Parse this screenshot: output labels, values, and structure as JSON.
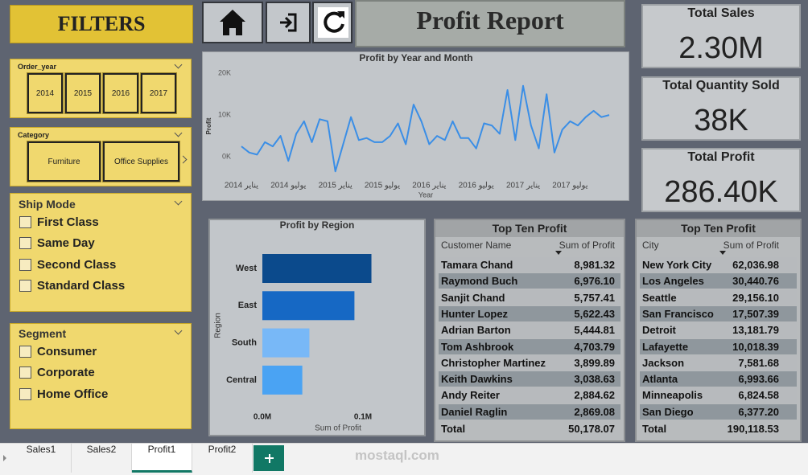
{
  "filters_title": "FILTERS",
  "order_year": {
    "title": "Order_year",
    "options": [
      "2014",
      "2015",
      "2016",
      "2017"
    ]
  },
  "category": {
    "title": "Category",
    "options": [
      "Furniture",
      "Office Supplies"
    ]
  },
  "ship_mode": {
    "title": "Ship Mode",
    "options": [
      "First Class",
      "Same Day",
      "Second Class",
      "Standard Class"
    ]
  },
  "segment": {
    "title": "Segment",
    "options": [
      "Consumer",
      "Corporate",
      "Home Office"
    ]
  },
  "report_title": "Profit Report",
  "cards": [
    {
      "label": "Total Sales",
      "value": "2.30M"
    },
    {
      "label": "Total Quantity Sold",
      "value": "38K"
    },
    {
      "label": "Total Profit",
      "value": "286.40K"
    }
  ],
  "chart_data": [
    {
      "type": "line",
      "title": "Profit by Year and Month",
      "x_label": "Year",
      "y_label": "Profit",
      "color": "#3a8ee6",
      "grid": false,
      "categories": [
        "يناير 2014",
        null,
        null,
        null,
        null,
        null,
        "يوليو 2014",
        null,
        null,
        null,
        null,
        null,
        "يناير 2015",
        null,
        null,
        null,
        null,
        null,
        "يوليو 2015",
        null,
        null,
        null,
        null,
        null,
        "يناير 2016",
        null,
        null,
        null,
        null,
        null,
        "يوليو 2016",
        null,
        null,
        null,
        null,
        null,
        "يناير 2017",
        null,
        null,
        null,
        null,
        null,
        "يوليو 2017",
        null,
        null,
        null,
        null,
        null
      ],
      "values": [
        2500,
        1000,
        500,
        3500,
        2500,
        5000,
        -1000,
        5500,
        8500,
        3500,
        9000,
        8500,
        -3500,
        3000,
        9500,
        4000,
        4500,
        3500,
        3500,
        5000,
        8000,
        3000,
        12500,
        8500,
        3000,
        5000,
        4000,
        8500,
        4500,
        4500,
        2000,
        8000,
        7500,
        5500,
        16000,
        4000,
        17000,
        7500,
        2000,
        15000,
        1000,
        6500,
        8500,
        7500,
        9500,
        11000,
        9500,
        10000
      ],
      "ylim": [
        -5000,
        21000
      ],
      "yticks": [
        {
          "value": 0,
          "label": "0K"
        },
        {
          "value": 10000,
          "label": "10K"
        },
        {
          "value": 20000,
          "label": "20K"
        }
      ]
    },
    {
      "type": "bar",
      "orientation": "horizontal",
      "title": "Profit by Region",
      "x_label": "Sum of Profit",
      "y_label": "Region",
      "grid": false,
      "categories": [
        "West",
        "East",
        "South",
        "Central"
      ],
      "values": [
        108418.45,
        91522.78,
        46749.43,
        39706.36
      ],
      "colors": [
        "#0b4a8c",
        "#1668c4",
        "#78b8f7",
        "#4aa3f3"
      ],
      "xlim": [
        0,
        140000
      ],
      "xticks": [
        {
          "value": 0,
          "label": "0.0M"
        },
        {
          "value": 100000,
          "label": "0.1M"
        }
      ]
    }
  ],
  "tables": [
    {
      "title": "Top Ten Profit",
      "columns": [
        "Customer Name",
        "Sum of Profit"
      ],
      "rows": [
        [
          "Tamara Chand",
          "8,981.32"
        ],
        [
          "Raymond Buch",
          "6,976.10"
        ],
        [
          "Sanjit Chand",
          "5,757.41"
        ],
        [
          "Hunter Lopez",
          "5,622.43"
        ],
        [
          "Adrian Barton",
          "5,444.81"
        ],
        [
          "Tom Ashbrook",
          "4,703.79"
        ],
        [
          "Christopher Martinez",
          "3,899.89"
        ],
        [
          "Keith Dawkins",
          "3,038.63"
        ],
        [
          "Andy Reiter",
          "2,884.62"
        ],
        [
          "Daniel Raglin",
          "2,869.08"
        ]
      ],
      "total": [
        "Total",
        "50,178.07"
      ]
    },
    {
      "title": "Top Ten Profit",
      "columns": [
        "City",
        "Sum of Profit"
      ],
      "rows": [
        [
          "New York City",
          "62,036.98"
        ],
        [
          "Los Angeles",
          "30,440.76"
        ],
        [
          "Seattle",
          "29,156.10"
        ],
        [
          "San Francisco",
          "17,507.39"
        ],
        [
          "Detroit",
          "13,181.79"
        ],
        [
          "Lafayette",
          "10,018.39"
        ],
        [
          "Jackson",
          "7,581.68"
        ],
        [
          "Atlanta",
          "6,993.66"
        ],
        [
          "Minneapolis",
          "6,824.58"
        ],
        [
          "San Diego",
          "6,377.20"
        ]
      ],
      "total": [
        "Total",
        "190,118.53"
      ]
    }
  ],
  "tabs": [
    "Sales1",
    "Sales2",
    "Profit1",
    "Profit2"
  ],
  "active_tab": 2,
  "watermark": "mostaql.com"
}
